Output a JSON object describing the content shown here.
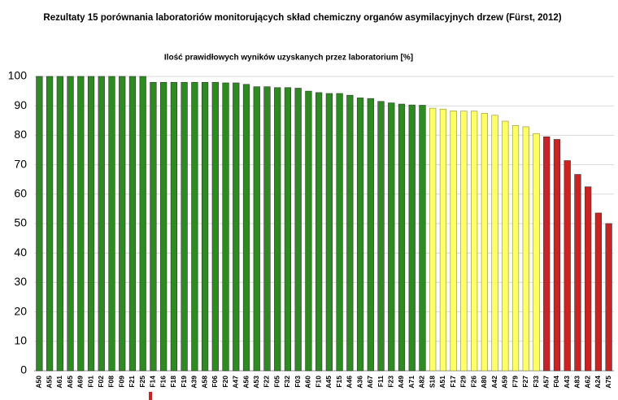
{
  "chart_data": {
    "type": "bar",
    "title": "Rezultaty 15 porównania laboratoriów monitorujących skład chemiczny organów asymilacyjnych drzew (Fürst, 2012)",
    "subtitle": "Ilość prawidłowych wyników uzyskanych przez laboratorium [%]",
    "categories": [
      "A50",
      "A55",
      "A61",
      "A65",
      "A69",
      "F01",
      "F02",
      "F08",
      "F09",
      "F21",
      "F25",
      "F14",
      "F16",
      "F18",
      "F19",
      "A39",
      "A58",
      "F06",
      "F20",
      "A47",
      "A56",
      "A53",
      "F22",
      "F05",
      "F32",
      "F03",
      "A60",
      "F10",
      "A45",
      "F15",
      "A46",
      "A36",
      "A67",
      "F11",
      "F23",
      "A49",
      "A71",
      "A82",
      "S18",
      "A51",
      "F17",
      "F29",
      "F26",
      "A80",
      "A42",
      "A59",
      "F79",
      "F27",
      "F33",
      "A57",
      "F04",
      "A43",
      "A83",
      "A62",
      "A24",
      "A75"
    ],
    "values": [
      100,
      100,
      100,
      100,
      100,
      100,
      100,
      100,
      100,
      100,
      100,
      98,
      98,
      98,
      98,
      98,
      98,
      98,
      97.8,
      97.8,
      97.3,
      96.5,
      96.5,
      96.2,
      96.2,
      96,
      95,
      94.5,
      94.2,
      94.2,
      93.6,
      92.7,
      92.5,
      91.5,
      91,
      90.6,
      90.3,
      90.2,
      89.2,
      88.9,
      88.3,
      88.2,
      88.2,
      87.5,
      86.8,
      84.8,
      83.3,
      82.9,
      80.6,
      79.5,
      78.6,
      71.4,
      66.7,
      62.5,
      53.6,
      50
    ],
    "colors": [
      "#2e8b22",
      "#2e8b22",
      "#2e8b22",
      "#2e8b22",
      "#2e8b22",
      "#2e8b22",
      "#2e8b22",
      "#2e8b22",
      "#2e8b22",
      "#2e8b22",
      "#2e8b22",
      "#2e8b22",
      "#2e8b22",
      "#2e8b22",
      "#2e8b22",
      "#2e8b22",
      "#2e8b22",
      "#2e8b22",
      "#2e8b22",
      "#2e8b22",
      "#2e8b22",
      "#2e8b22",
      "#2e8b22",
      "#2e8b22",
      "#2e8b22",
      "#2e8b22",
      "#2e8b22",
      "#2e8b22",
      "#2e8b22",
      "#2e8b22",
      "#2e8b22",
      "#2e8b22",
      "#2e8b22",
      "#2e8b22",
      "#2e8b22",
      "#2e8b22",
      "#2e8b22",
      "#2e8b22",
      "#ffff66",
      "#ffff66",
      "#ffff66",
      "#ffff66",
      "#ffff66",
      "#ffff66",
      "#ffff66",
      "#ffff66",
      "#ffff66",
      "#ffff66",
      "#ffff66",
      "#cc2222",
      "#cc2222",
      "#cc2222",
      "#cc2222",
      "#cc2222",
      "#cc2222",
      "#cc2222"
    ],
    "ylim": [
      0,
      100
    ],
    "yticks": [
      0,
      10,
      20,
      30,
      40,
      50,
      60,
      70,
      80,
      90,
      100
    ],
    "grid": true
  }
}
